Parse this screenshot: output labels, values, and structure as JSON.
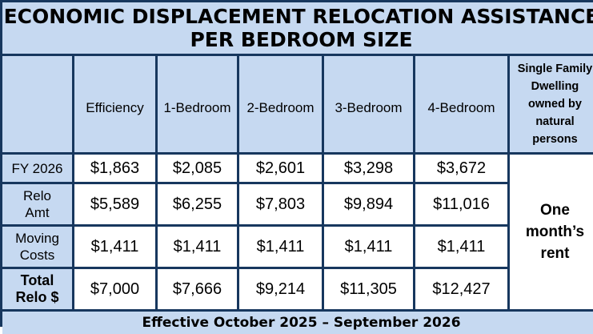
{
  "title": {
    "line1": "ECONOMIC DISPLACEMENT RELOCATION ASSISTANCE",
    "line2": "PER BEDROOM SIZE"
  },
  "columns": [
    "",
    "Efficiency",
    "1-Bedroom",
    "2-Bedroom",
    "3-Bedroom",
    "4-Bedroom",
    "Single Family Dwelling owned by natural persons"
  ],
  "single_family_lines": [
    "Single Family",
    "Dwelling",
    "owned by",
    "natural",
    "persons"
  ],
  "rows": [
    {
      "label_lines": [
        "FY 2026"
      ],
      "values": [
        "$1,863",
        "$2,085",
        "$2,601",
        "$3,298",
        "$3,672"
      ]
    },
    {
      "label_lines": [
        "Relo",
        "Amt"
      ],
      "values": [
        "$5,589",
        "$6,255",
        "$7,803",
        "$9,894",
        "$11,016"
      ]
    },
    {
      "label_lines": [
        "Moving",
        "Costs"
      ],
      "values": [
        "$1,411",
        "$1,411",
        "$1,411",
        "$1,411",
        "$1,411"
      ]
    },
    {
      "label_lines": [
        "Total",
        "Relo $"
      ],
      "values": [
        "$7,000",
        "$7,666",
        "$9,214",
        "$11,305",
        "$12,427"
      ]
    }
  ],
  "single_family_value_lines": [
    "One",
    "month’s",
    "rent"
  ],
  "footer": "Effective October 2025 – September 2026",
  "colors": {
    "border": "#17375e",
    "header_fill": "#c6d9f1",
    "value_fill": "#ffffff"
  }
}
